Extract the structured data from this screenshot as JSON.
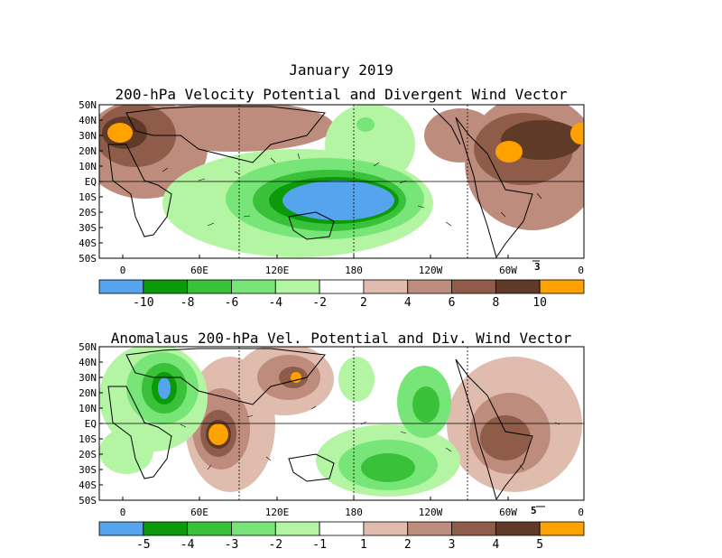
{
  "chart_data": [
    {
      "type": "heatmap",
      "main_title": "January 2019",
      "title": "200-hPa Velocity Potential and Divergent Wind Vector",
      "lat_ticks": [
        "50N",
        "40N",
        "30N",
        "20N",
        "10N",
        "EQ",
        "10S",
        "20S",
        "30S",
        "40S",
        "50S"
      ],
      "lon_ticks": [
        "0",
        "60E",
        "120E",
        "180",
        "120W",
        "60W",
        "0"
      ],
      "vector_reference": "3",
      "colorbar": {
        "labels": [
          "-10",
          "-8",
          "-6",
          "-4",
          "-2",
          "2",
          "4",
          "6",
          "8",
          "10"
        ],
        "colors": [
          "#55a5ee",
          "#0a9a0a",
          "#39c239",
          "#77e577",
          "#b4f5a4",
          "#ffffff",
          "#e0bcae",
          "#bd8c7c",
          "#8f5c4a",
          "#603a28",
          "#ffa200"
        ]
      }
    },
    {
      "type": "heatmap",
      "title": "Anomalaus 200-hPa Vel. Potential and Div. Wind Vector",
      "lat_ticks": [
        "50N",
        "40N",
        "30N",
        "20N",
        "10N",
        "EQ",
        "10S",
        "20S",
        "30S",
        "40S",
        "50S"
      ],
      "lon_ticks": [
        "0",
        "60E",
        "120E",
        "180",
        "120W",
        "60W",
        "0"
      ],
      "vector_reference": "5",
      "colorbar": {
        "labels": [
          "-5",
          "-4",
          "-3",
          "-2",
          "-1",
          "1",
          "2",
          "3",
          "4",
          "5"
        ],
        "colors": [
          "#55a5ee",
          "#0a9a0a",
          "#39c239",
          "#77e577",
          "#b4f5a4",
          "#ffffff",
          "#e0bcae",
          "#bd8c7c",
          "#8f5c4a",
          "#603a28",
          "#ffa200"
        ]
      }
    }
  ]
}
